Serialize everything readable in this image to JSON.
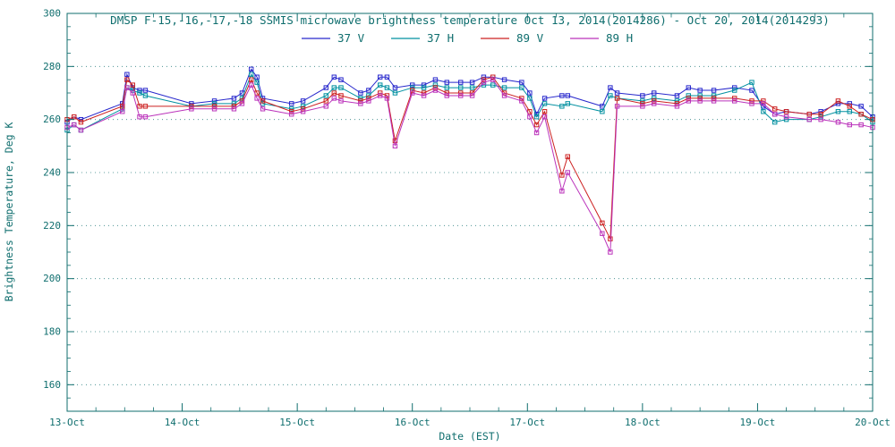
{
  "page": {
    "background": "#ffffff"
  },
  "chart_data": {
    "type": "line",
    "title": "DMSP F-15,-16,-17,-18 SSMIS microwave brightness temperature Oct 13, 2014(2014286) - Oct 20, 2014(2014293)",
    "xlabel": "Date (EST)",
    "ylabel": "Brightness Temperature, Deg K",
    "xlim": [
      0,
      7
    ],
    "ylim": [
      150,
      300
    ],
    "yticks": [
      160,
      180,
      200,
      220,
      240,
      260,
      280,
      300
    ],
    "xticks": [
      0,
      1,
      2,
      3,
      4,
      5,
      6,
      7
    ],
    "xtick_labels": [
      "13-Oct",
      "14-Oct",
      "15-Oct",
      "16-Oct",
      "17-Oct",
      "18-Oct",
      "19-Oct",
      "20-Oct"
    ],
    "grid": "horizontal-dotted",
    "legend_position": "top-inside",
    "marker": "open-square",
    "colors": {
      "axis_text": "#0f6e6e"
    },
    "x": [
      0.0,
      0.06,
      0.12,
      0.48,
      0.52,
      0.57,
      0.63,
      0.68,
      1.08,
      1.28,
      1.45,
      1.52,
      1.6,
      1.65,
      1.7,
      1.95,
      2.05,
      2.25,
      2.32,
      2.38,
      2.55,
      2.62,
      2.72,
      2.78,
      2.85,
      3.0,
      3.1,
      3.2,
      3.3,
      3.42,
      3.52,
      3.62,
      3.7,
      3.8,
      3.95,
      4.02,
      4.08,
      4.15,
      4.3,
      4.35,
      4.65,
      4.72,
      4.78,
      5.0,
      5.1,
      5.3,
      5.4,
      5.5,
      5.62,
      5.8,
      5.95,
      6.05,
      6.15,
      6.25,
      6.45,
      6.55,
      6.7,
      6.8,
      6.9,
      7.0
    ],
    "series": [
      {
        "name": "37 V",
        "color": "#2727cc",
        "values": [
          259,
          261,
          260,
          266,
          277,
          272,
          271,
          271,
          266,
          267,
          268,
          270,
          279,
          276,
          268,
          266,
          267,
          272,
          276,
          275,
          270,
          271,
          276,
          276,
          272,
          273,
          273,
          275,
          274,
          274,
          274,
          276,
          276,
          275,
          274,
          270,
          262,
          268,
          269,
          269,
          265,
          272,
          270,
          269,
          270,
          269,
          272,
          271,
          271,
          272,
          271,
          265,
          262,
          263,
          262,
          263,
          266,
          266,
          265,
          261
        ]
      },
      {
        "name": "37 H",
        "color": "#0090a0",
        "values": [
          256,
          258,
          256,
          264,
          272,
          271,
          270,
          269,
          265,
          266,
          266,
          268,
          277,
          274,
          266,
          264,
          265,
          269,
          272,
          272,
          268,
          269,
          273,
          272,
          270,
          272,
          272,
          273,
          272,
          272,
          272,
          273,
          273,
          272,
          272,
          268,
          261,
          266,
          265,
          266,
          263,
          269,
          268,
          267,
          268,
          267,
          269,
          269,
          269,
          271,
          274,
          263,
          259,
          260,
          260,
          261,
          263,
          263,
          262,
          259
        ]
      },
      {
        "name": "89 V",
        "color": "#cc2020",
        "values": [
          260,
          261,
          259,
          265,
          275,
          273,
          265,
          265,
          265,
          265,
          265,
          267,
          275,
          270,
          267,
          263,
          264,
          267,
          270,
          269,
          267,
          268,
          270,
          269,
          252,
          271,
          270,
          272,
          270,
          270,
          270,
          275,
          276,
          270,
          268,
          263,
          258,
          263,
          239,
          246,
          221,
          215,
          268,
          266,
          267,
          266,
          268,
          268,
          268,
          268,
          267,
          267,
          264,
          263,
          262,
          262,
          267,
          265,
          262,
          260
        ]
      },
      {
        "name": "89 H",
        "color": "#bb33bb",
        "values": [
          257,
          258,
          256,
          263,
          272,
          270,
          261,
          261,
          264,
          264,
          264,
          266,
          273,
          268,
          264,
          262,
          263,
          265,
          268,
          267,
          266,
          267,
          269,
          268,
          250,
          270,
          269,
          271,
          269,
          269,
          269,
          274,
          275,
          269,
          267,
          261,
          255,
          261,
          233,
          240,
          217,
          210,
          265,
          265,
          266,
          265,
          267,
          267,
          267,
          267,
          266,
          266,
          262,
          261,
          260,
          260,
          259,
          258,
          258,
          257
        ]
      }
    ]
  }
}
